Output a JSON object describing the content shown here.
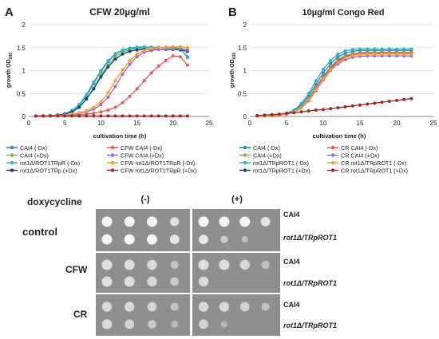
{
  "panels": {
    "a_letter": "A",
    "b_letter": "B"
  },
  "chart_data": [
    {
      "type": "line",
      "panel": "A",
      "title": "CFW 20µg/ml",
      "xlabel": "cultivation time (h)",
      "ylabel": "growth OD600",
      "xlim": [
        0,
        25
      ],
      "ylim": [
        0,
        2
      ],
      "xticks": [
        "0",
        "5",
        "10",
        "15",
        "20",
        "25"
      ],
      "yticks": [
        "0",
        "0.5",
        "1",
        "1.5",
        "2"
      ],
      "grid": true,
      "legend_position": "bottom",
      "x": [
        1,
        2,
        3,
        4,
        5,
        6,
        7,
        8,
        9,
        10,
        11,
        12,
        13,
        14,
        15,
        16,
        17,
        18,
        19,
        20,
        21,
        22
      ],
      "series": [
        {
          "name": "CAI4 (-Dx)",
          "color": "#2e86c1",
          "values": [
            0.01,
            0.01,
            0.02,
            0.03,
            0.06,
            0.12,
            0.24,
            0.45,
            0.72,
            0.98,
            1.2,
            1.36,
            1.44,
            1.48,
            1.5,
            1.51,
            1.5,
            1.5,
            1.5,
            1.49,
            1.48,
            1.3
          ]
        },
        {
          "name": "CAI4 (+Dx)",
          "color": "#7fb24a",
          "values": [
            0.01,
            0.01,
            0.02,
            0.03,
            0.05,
            0.1,
            0.2,
            0.38,
            0.62,
            0.9,
            1.12,
            1.3,
            1.4,
            1.45,
            1.48,
            1.49,
            1.5,
            1.5,
            1.5,
            1.5,
            1.49,
            1.45
          ]
        },
        {
          "name": "rot1Δ/ROT1TRpR (-Dx)",
          "color": "#2bb5c9",
          "values": [
            0.01,
            0.01,
            0.02,
            0.03,
            0.06,
            0.13,
            0.26,
            0.48,
            0.75,
            1.0,
            1.22,
            1.37,
            1.45,
            1.49,
            1.51,
            1.52,
            1.51,
            1.51,
            1.5,
            1.5,
            1.48,
            1.28
          ]
        },
        {
          "name": "rot1Δ/ROT1TRp (+Dx)",
          "color": "#1f3f73",
          "values": [
            0.01,
            0.01,
            0.02,
            0.03,
            0.05,
            0.1,
            0.2,
            0.38,
            0.6,
            0.86,
            1.08,
            1.25,
            1.36,
            1.42,
            1.45,
            1.46,
            1.46,
            1.46,
            1.46,
            1.46,
            1.45,
            1.42
          ]
        },
        {
          "name": "CFW CAI4 (-Dx)",
          "color": "#e35c5c",
          "values": [
            0.01,
            0.01,
            0.01,
            0.02,
            0.02,
            0.03,
            0.04,
            0.05,
            0.07,
            0.1,
            0.14,
            0.2,
            0.3,
            0.44,
            0.6,
            0.78,
            0.95,
            1.1,
            1.22,
            1.32,
            1.3,
            1.12
          ]
        },
        {
          "name": "CFW CAI4 (+Dx)",
          "color": "#9b6cc7",
          "values": [
            0.01,
            0.01,
            0.02,
            0.02,
            0.03,
            0.05,
            0.07,
            0.1,
            0.16,
            0.26,
            0.42,
            0.65,
            0.92,
            1.14,
            1.3,
            1.4,
            1.44,
            1.46,
            1.47,
            1.47,
            1.47,
            1.45
          ]
        },
        {
          "name": "CFW rot1Δ/ROT1TRpR (-Dx)",
          "color": "#f39c3c",
          "values": [
            0.01,
            0.01,
            0.02,
            0.02,
            0.03,
            0.05,
            0.08,
            0.12,
            0.2,
            0.32,
            0.52,
            0.78,
            1.02,
            1.22,
            1.36,
            1.44,
            1.48,
            1.5,
            1.51,
            1.52,
            1.52,
            1.5
          ]
        },
        {
          "name": "CFW rot1Δ/ROT1TRpR (+Dx)",
          "color": "#9c2a2a",
          "values": [
            0.01,
            0.01,
            0.01,
            0.01,
            0.01,
            0.01,
            0.01,
            0.01,
            0.01,
            0.01,
            0.01,
            0.01,
            0.01,
            0.01,
            0.01,
            0.01,
            0.01,
            0.01,
            0.01,
            0.01,
            0.01,
            0.01
          ]
        }
      ]
    },
    {
      "type": "line",
      "panel": "B",
      "title": "10µg/ml Congo Red",
      "xlabel": "cultivation time (h)",
      "ylabel": "growth OD600",
      "xlim": [
        0,
        25
      ],
      "ylim": [
        0,
        2
      ],
      "xticks": [
        "0",
        "5",
        "10",
        "15",
        "20",
        "25"
      ],
      "yticks": [
        "0",
        "0.5",
        "1",
        "1.5",
        "2"
      ],
      "grid": true,
      "legend_position": "bottom",
      "x": [
        1,
        2,
        3,
        4,
        5,
        6,
        7,
        8,
        9,
        10,
        11,
        12,
        13,
        14,
        15,
        16,
        17,
        18,
        19,
        20,
        21,
        22
      ],
      "series": [
        {
          "name": "CAI4 (-Dx)",
          "color": "#2e86c1",
          "values": [
            0.01,
            0.01,
            0.02,
            0.03,
            0.06,
            0.12,
            0.24,
            0.45,
            0.7,
            0.95,
            1.15,
            1.3,
            1.38,
            1.42,
            1.44,
            1.44,
            1.44,
            1.44,
            1.44,
            1.44,
            1.44,
            1.44
          ]
        },
        {
          "name": "CAI4 (+Dx)",
          "color": "#7fb24a",
          "values": [
            0.01,
            0.01,
            0.02,
            0.03,
            0.05,
            0.1,
            0.2,
            0.4,
            0.64,
            0.88,
            1.08,
            1.24,
            1.33,
            1.37,
            1.39,
            1.4,
            1.4,
            1.4,
            1.4,
            1.4,
            1.4,
            1.4
          ]
        },
        {
          "name": "rot1Δ/TRpROT1 (-Dx)",
          "color": "#2bb5c9",
          "values": [
            0.01,
            0.01,
            0.02,
            0.03,
            0.07,
            0.14,
            0.28,
            0.5,
            0.78,
            1.03,
            1.22,
            1.36,
            1.43,
            1.46,
            1.47,
            1.47,
            1.47,
            1.47,
            1.47,
            1.47,
            1.47,
            1.47
          ]
        },
        {
          "name": "rot1Δ/TRpROT1 (+Dx)",
          "color": "#1f3f73",
          "values": [
            0.01,
            0.01,
            0.02,
            0.03,
            0.05,
            0.1,
            0.2,
            0.38,
            0.6,
            0.84,
            1.04,
            1.2,
            1.3,
            1.35,
            1.37,
            1.38,
            1.38,
            1.38,
            1.38,
            1.38,
            1.38,
            1.38
          ]
        },
        {
          "name": "CR CAI4 (-Dx)",
          "color": "#e35c5c",
          "values": [
            0.01,
            0.01,
            0.02,
            0.03,
            0.05,
            0.1,
            0.2,
            0.38,
            0.62,
            0.86,
            1.06,
            1.22,
            1.31,
            1.35,
            1.37,
            1.38,
            1.38,
            1.38,
            1.38,
            1.38,
            1.38,
            1.38
          ]
        },
        {
          "name": "CR CAI4 (+Dx)",
          "color": "#9b6cc7",
          "values": [
            0.01,
            0.01,
            0.02,
            0.03,
            0.05,
            0.09,
            0.18,
            0.34,
            0.56,
            0.8,
            1.0,
            1.15,
            1.24,
            1.29,
            1.31,
            1.32,
            1.32,
            1.32,
            1.32,
            1.32,
            1.32,
            1.32
          ]
        },
        {
          "name": "CR rot1Δ/TRpROT1 (-Dx)",
          "color": "#f39c3c",
          "values": [
            0.01,
            0.01,
            0.02,
            0.03,
            0.05,
            0.1,
            0.19,
            0.36,
            0.58,
            0.82,
            1.02,
            1.18,
            1.28,
            1.33,
            1.35,
            1.36,
            1.36,
            1.36,
            1.36,
            1.36,
            1.36,
            1.36
          ]
        },
        {
          "name": "CR rot1Δ/TRpROT1 (+Dx)",
          "color": "#9c2a2a",
          "values": [
            0.02,
            0.03,
            0.04,
            0.05,
            0.07,
            0.08,
            0.1,
            0.12,
            0.14,
            0.15,
            0.17,
            0.19,
            0.21,
            0.23,
            0.25,
            0.27,
            0.29,
            0.31,
            0.33,
            0.35,
            0.37,
            0.39
          ]
        }
      ]
    }
  ],
  "plates": {
    "header": "doxycycline",
    "minus": "(-)",
    "plus": "(+)",
    "rows": [
      {
        "label": "control",
        "strains": [
          "CAI4",
          "rot1Δ/TRpROT1"
        ],
        "minus_growth": [
          [
            1,
            1,
            1,
            0.7
          ],
          [
            1,
            1,
            1,
            0.8
          ]
        ],
        "plus_growth": [
          [
            1,
            1,
            1,
            0.8
          ],
          [
            0.8,
            0.4,
            0.2,
            0
          ]
        ]
      },
      {
        "label": "CFW",
        "strains": [
          "CAI4",
          "rot1Δ/TRpROT1"
        ],
        "minus_growth": [
          [
            1,
            1,
            0.9,
            0.5
          ],
          [
            1,
            1,
            0.9,
            0.6
          ]
        ],
        "plus_growth": [
          [
            1,
            1,
            0.9,
            0.5
          ],
          [
            0.9,
            0,
            0,
            0
          ]
        ]
      },
      {
        "label": "CR",
        "strains": [
          "CAI4",
          "rot1Δ/TRpROT1"
        ],
        "minus_growth": [
          [
            0.9,
            0.9,
            0.8,
            0.5
          ],
          [
            0.9,
            0.8,
            0.6,
            0.3
          ]
        ],
        "plus_growth": [
          [
            0.9,
            0.9,
            0.8,
            0.5
          ],
          [
            0.8,
            0.2,
            0,
            0
          ]
        ]
      }
    ]
  }
}
